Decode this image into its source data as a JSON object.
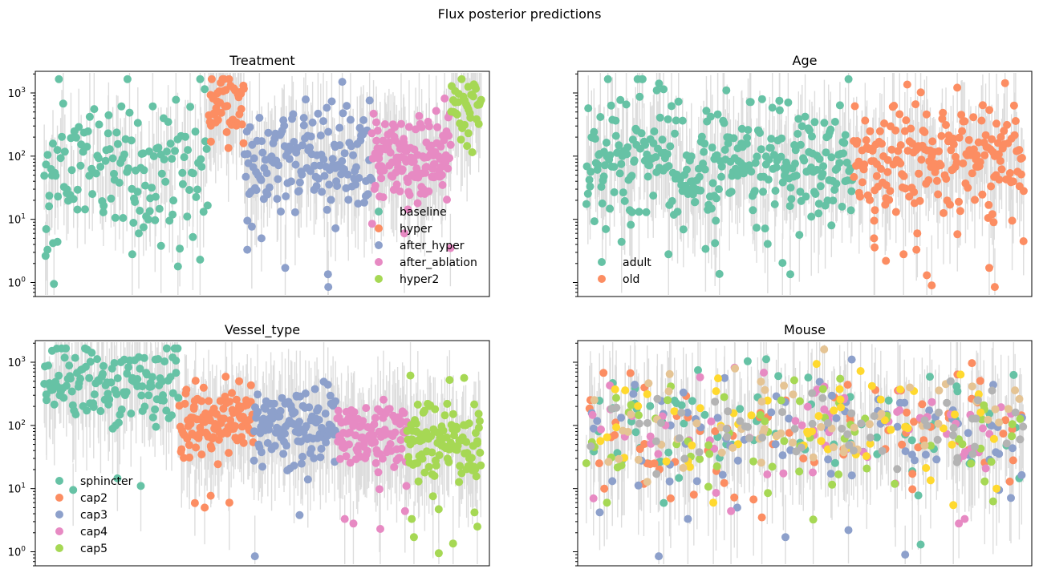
{
  "figure": {
    "suptitle": "Flux posterior predictions"
  },
  "colors": {
    "palette": [
      "#66c2a5",
      "#fc8d62",
      "#8da0cb",
      "#e78ac3",
      "#a6d854",
      "#ffd92f",
      "#e5c494",
      "#b3b3b3"
    ],
    "interval": "#dddddd"
  },
  "chart_data": [
    {
      "type": "scatter",
      "title": "Treatment",
      "xlabel": "",
      "ylabel": "",
      "yscale": "log",
      "ylim": [
        0.6,
        2200
      ],
      "yticks": [
        1,
        10,
        100,
        1000
      ],
      "ytick_labels": [
        "10^0",
        "10^1",
        "10^2",
        "10^3"
      ],
      "xticks": "none",
      "legend": {
        "placement": "lower-right",
        "entries": [
          "baseline",
          "hyper",
          "after_hyper",
          "after_ablation",
          "hyper2"
        ]
      },
      "series": [
        {
          "name": "baseline",
          "color_index": 0,
          "n_points": 140,
          "x_range": [
            0.0,
            0.377
          ],
          "median": 65,
          "spread_sigma": 0.55,
          "low_outliers": [
            0.95,
            2.3,
            2.8,
            3.3,
            3.8,
            4.2,
            4.4,
            6.0,
            7.0,
            7.5,
            8.8,
            10.5,
            13.5
          ]
        },
        {
          "name": "hyper",
          "color_index": 1,
          "n_points": 45,
          "x_range": [
            0.377,
            0.459
          ],
          "median": 600,
          "spread_sigma": 0.35,
          "low_outliers": [
            160,
            170
          ]
        },
        {
          "name": "after_hyper",
          "color_index": 2,
          "n_points": 150,
          "x_range": [
            0.459,
            0.75
          ],
          "median": 95,
          "spread_sigma": 0.45,
          "low_outliers": [
            0.85,
            1.35,
            1.7,
            3.3,
            5.0,
            7.2,
            9.5,
            1500
          ]
        },
        {
          "name": "after_ablation",
          "color_index": 3,
          "n_points": 140,
          "x_range": [
            0.75,
            0.93
          ],
          "median": 90,
          "spread_sigma": 0.3,
          "low_outliers": [
            3.5,
            6.0,
            8.5,
            18,
            23
          ]
        },
        {
          "name": "hyper2",
          "color_index": 4,
          "n_points": 35,
          "x_range": [
            0.93,
            1.0
          ],
          "median": 700,
          "spread_sigma": 0.2,
          "low_outliers": [
            115,
            145,
            230
          ]
        }
      ]
    },
    {
      "type": "scatter",
      "title": "Age",
      "xlabel": "",
      "ylabel": "",
      "yscale": "log",
      "ylim": [
        0.6,
        2200
      ],
      "yticks": [
        1,
        10,
        100,
        1000
      ],
      "ytick_labels": [
        "",
        "",
        "",
        ""
      ],
      "xticks": "none",
      "legend": {
        "placement": "lower-left",
        "entries": [
          "adult",
          "old"
        ]
      },
      "series": [
        {
          "name": "adult",
          "color_index": 0,
          "n_points": 320,
          "x_range": [
            0.0,
            0.61
          ],
          "median": 80,
          "spread_sigma": 0.5,
          "low_outliers": [
            1.35,
            2.8,
            3.4,
            4.2,
            4.4,
            7.0,
            8.0,
            9.5,
            11,
            13
          ]
        },
        {
          "name": "old",
          "color_index": 1,
          "n_points": 200,
          "x_range": [
            0.61,
            1.0
          ],
          "median": 90,
          "spread_sigma": 0.45,
          "low_outliers": [
            0.85,
            0.9,
            1.3,
            1.7,
            2.2,
            2.8,
            3.3,
            3.6,
            4.5,
            5.0,
            5.8,
            6.0,
            9.0,
            9.5,
            10.5,
            14
          ]
        }
      ]
    },
    {
      "type": "scatter",
      "title": "Vessel_type",
      "xlabel": "",
      "ylabel": "",
      "yscale": "log",
      "ylim": [
        0.6,
        2200
      ],
      "yticks": [
        1,
        10,
        100,
        1000
      ],
      "ytick_labels": [
        "10^0",
        "10^1",
        "10^2",
        "10^3"
      ],
      "xticks": "none",
      "legend": {
        "placement": "lower-left",
        "entries": [
          "sphincter",
          "cap2",
          "cap3",
          "cap4",
          "cap5"
        ]
      },
      "series": [
        {
          "name": "sphincter",
          "color_index": 0,
          "n_points": 130,
          "x_range": [
            0.0,
            0.31
          ],
          "median": 420,
          "spread_sigma": 0.35,
          "low_outliers": [
            9.5,
            11,
            14.5,
            95
          ]
        },
        {
          "name": "cap2",
          "color_index": 1,
          "n_points": 110,
          "x_range": [
            0.31,
            0.48
          ],
          "median": 110,
          "spread_sigma": 0.3,
          "low_outliers": [
            5.0,
            5.9,
            6.0,
            7.7,
            31,
            500,
            510
          ]
        },
        {
          "name": "cap3",
          "color_index": 2,
          "n_points": 120,
          "x_range": [
            0.48,
            0.67
          ],
          "median": 85,
          "spread_sigma": 0.3,
          "low_outliers": [
            0.85,
            3.8,
            320
          ]
        },
        {
          "name": "cap4",
          "color_index": 3,
          "n_points": 110,
          "x_range": [
            0.67,
            0.83
          ],
          "median": 75,
          "spread_sigma": 0.3,
          "low_outliers": [
            2.3,
            2.8,
            3.3,
            4.4,
            9.8,
            11
          ]
        },
        {
          "name": "cap5",
          "color_index": 4,
          "n_points": 110,
          "x_range": [
            0.83,
            1.0
          ],
          "median": 55,
          "spread_sigma": 0.35,
          "low_outliers": [
            0.95,
            1.35,
            1.7,
            2.5,
            3.3,
            4.2,
            13
          ]
        }
      ]
    },
    {
      "type": "scatter",
      "title": "Mouse",
      "xlabel": "",
      "ylabel": "",
      "yscale": "log",
      "ylim": [
        0.6,
        2200
      ],
      "yticks": [
        1,
        10,
        100,
        1000
      ],
      "ytick_labels": [
        "",
        "",
        "",
        ""
      ],
      "xticks": "none",
      "legend": null,
      "series": [
        {
          "color_index": 0,
          "n_points": 75,
          "x_range": [
            0.0,
            1.0
          ],
          "median": 90,
          "spread_sigma": 0.5,
          "low_outliers": [
            1.3
          ]
        },
        {
          "color_index": 1,
          "n_points": 75,
          "x_range": [
            0.0,
            1.0
          ],
          "median": 90,
          "spread_sigma": 0.5,
          "low_outliers": [
            3.5,
            7.0,
            8.0,
            10,
            19
          ]
        },
        {
          "color_index": 2,
          "n_points": 75,
          "x_range": [
            0.0,
            1.0
          ],
          "median": 80,
          "spread_sigma": 0.5,
          "low_outliers": [
            0.85,
            0.9,
            1.7,
            2.2,
            3.3,
            4.2,
            5.0,
            9.5,
            13
          ]
        },
        {
          "color_index": 3,
          "n_points": 65,
          "x_range": [
            0.0,
            1.0
          ],
          "median": 80,
          "spread_sigma": 0.45,
          "low_outliers": [
            2.8,
            3.3,
            4.4,
            7.0
          ]
        },
        {
          "color_index": 4,
          "n_points": 65,
          "x_range": [
            0.0,
            1.0
          ],
          "median": 90,
          "spread_sigma": 0.45,
          "low_outliers": [
            6.0,
            8.5,
            13
          ]
        },
        {
          "color_index": 5,
          "n_points": 55,
          "x_range": [
            0.0,
            1.0
          ],
          "median": 110,
          "spread_sigma": 0.45,
          "low_outliers": [
            6.0,
            10,
            13.5,
            22,
            27
          ]
        },
        {
          "color_index": 6,
          "n_points": 60,
          "x_range": [
            0.0,
            1.0
          ],
          "median": 110,
          "spread_sigma": 0.4,
          "low_outliers": []
        },
        {
          "color_index": 7,
          "n_points": 60,
          "x_range": [
            0.0,
            1.0
          ],
          "median": 100,
          "spread_sigma": 0.4,
          "low_outliers": []
        }
      ]
    }
  ]
}
